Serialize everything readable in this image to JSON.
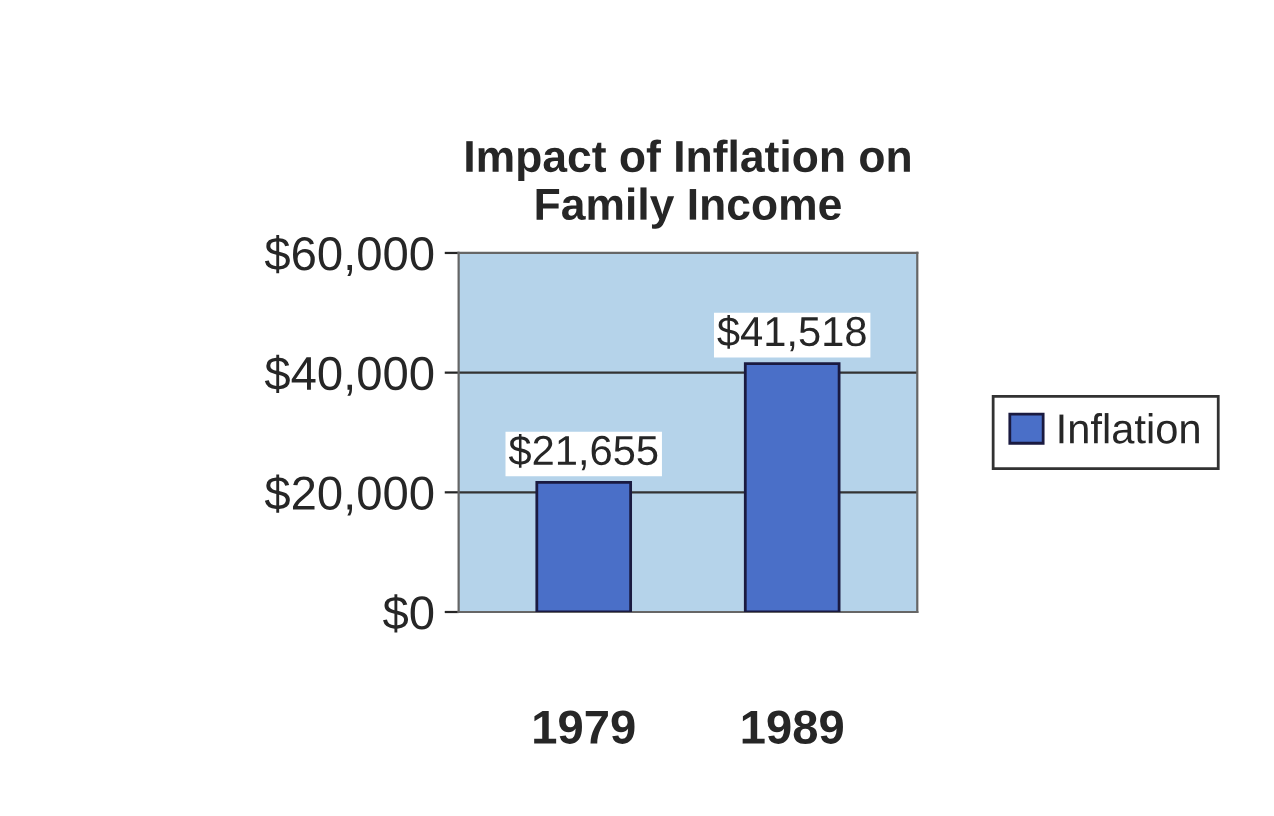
{
  "chart_data": {
    "type": "bar",
    "title": "Impact of Inflation on\nFamily Income",
    "categories": [
      "1979",
      "1989"
    ],
    "series": [
      {
        "name": "Inflation",
        "color": "#4a6fc8",
        "values": [
          21655,
          41518
        ]
      }
    ],
    "value_labels": [
      "$21,655",
      "$41,518"
    ],
    "ylim": [
      0,
      60000
    ],
    "yticks": [
      {
        "value": 0,
        "label": "$0"
      },
      {
        "value": 20000,
        "label": "$20,000"
      },
      {
        "value": 40000,
        "label": "$40,000"
      },
      {
        "value": 60000,
        "label": "$60,000"
      }
    ],
    "grid": "y",
    "legend": "right"
  }
}
